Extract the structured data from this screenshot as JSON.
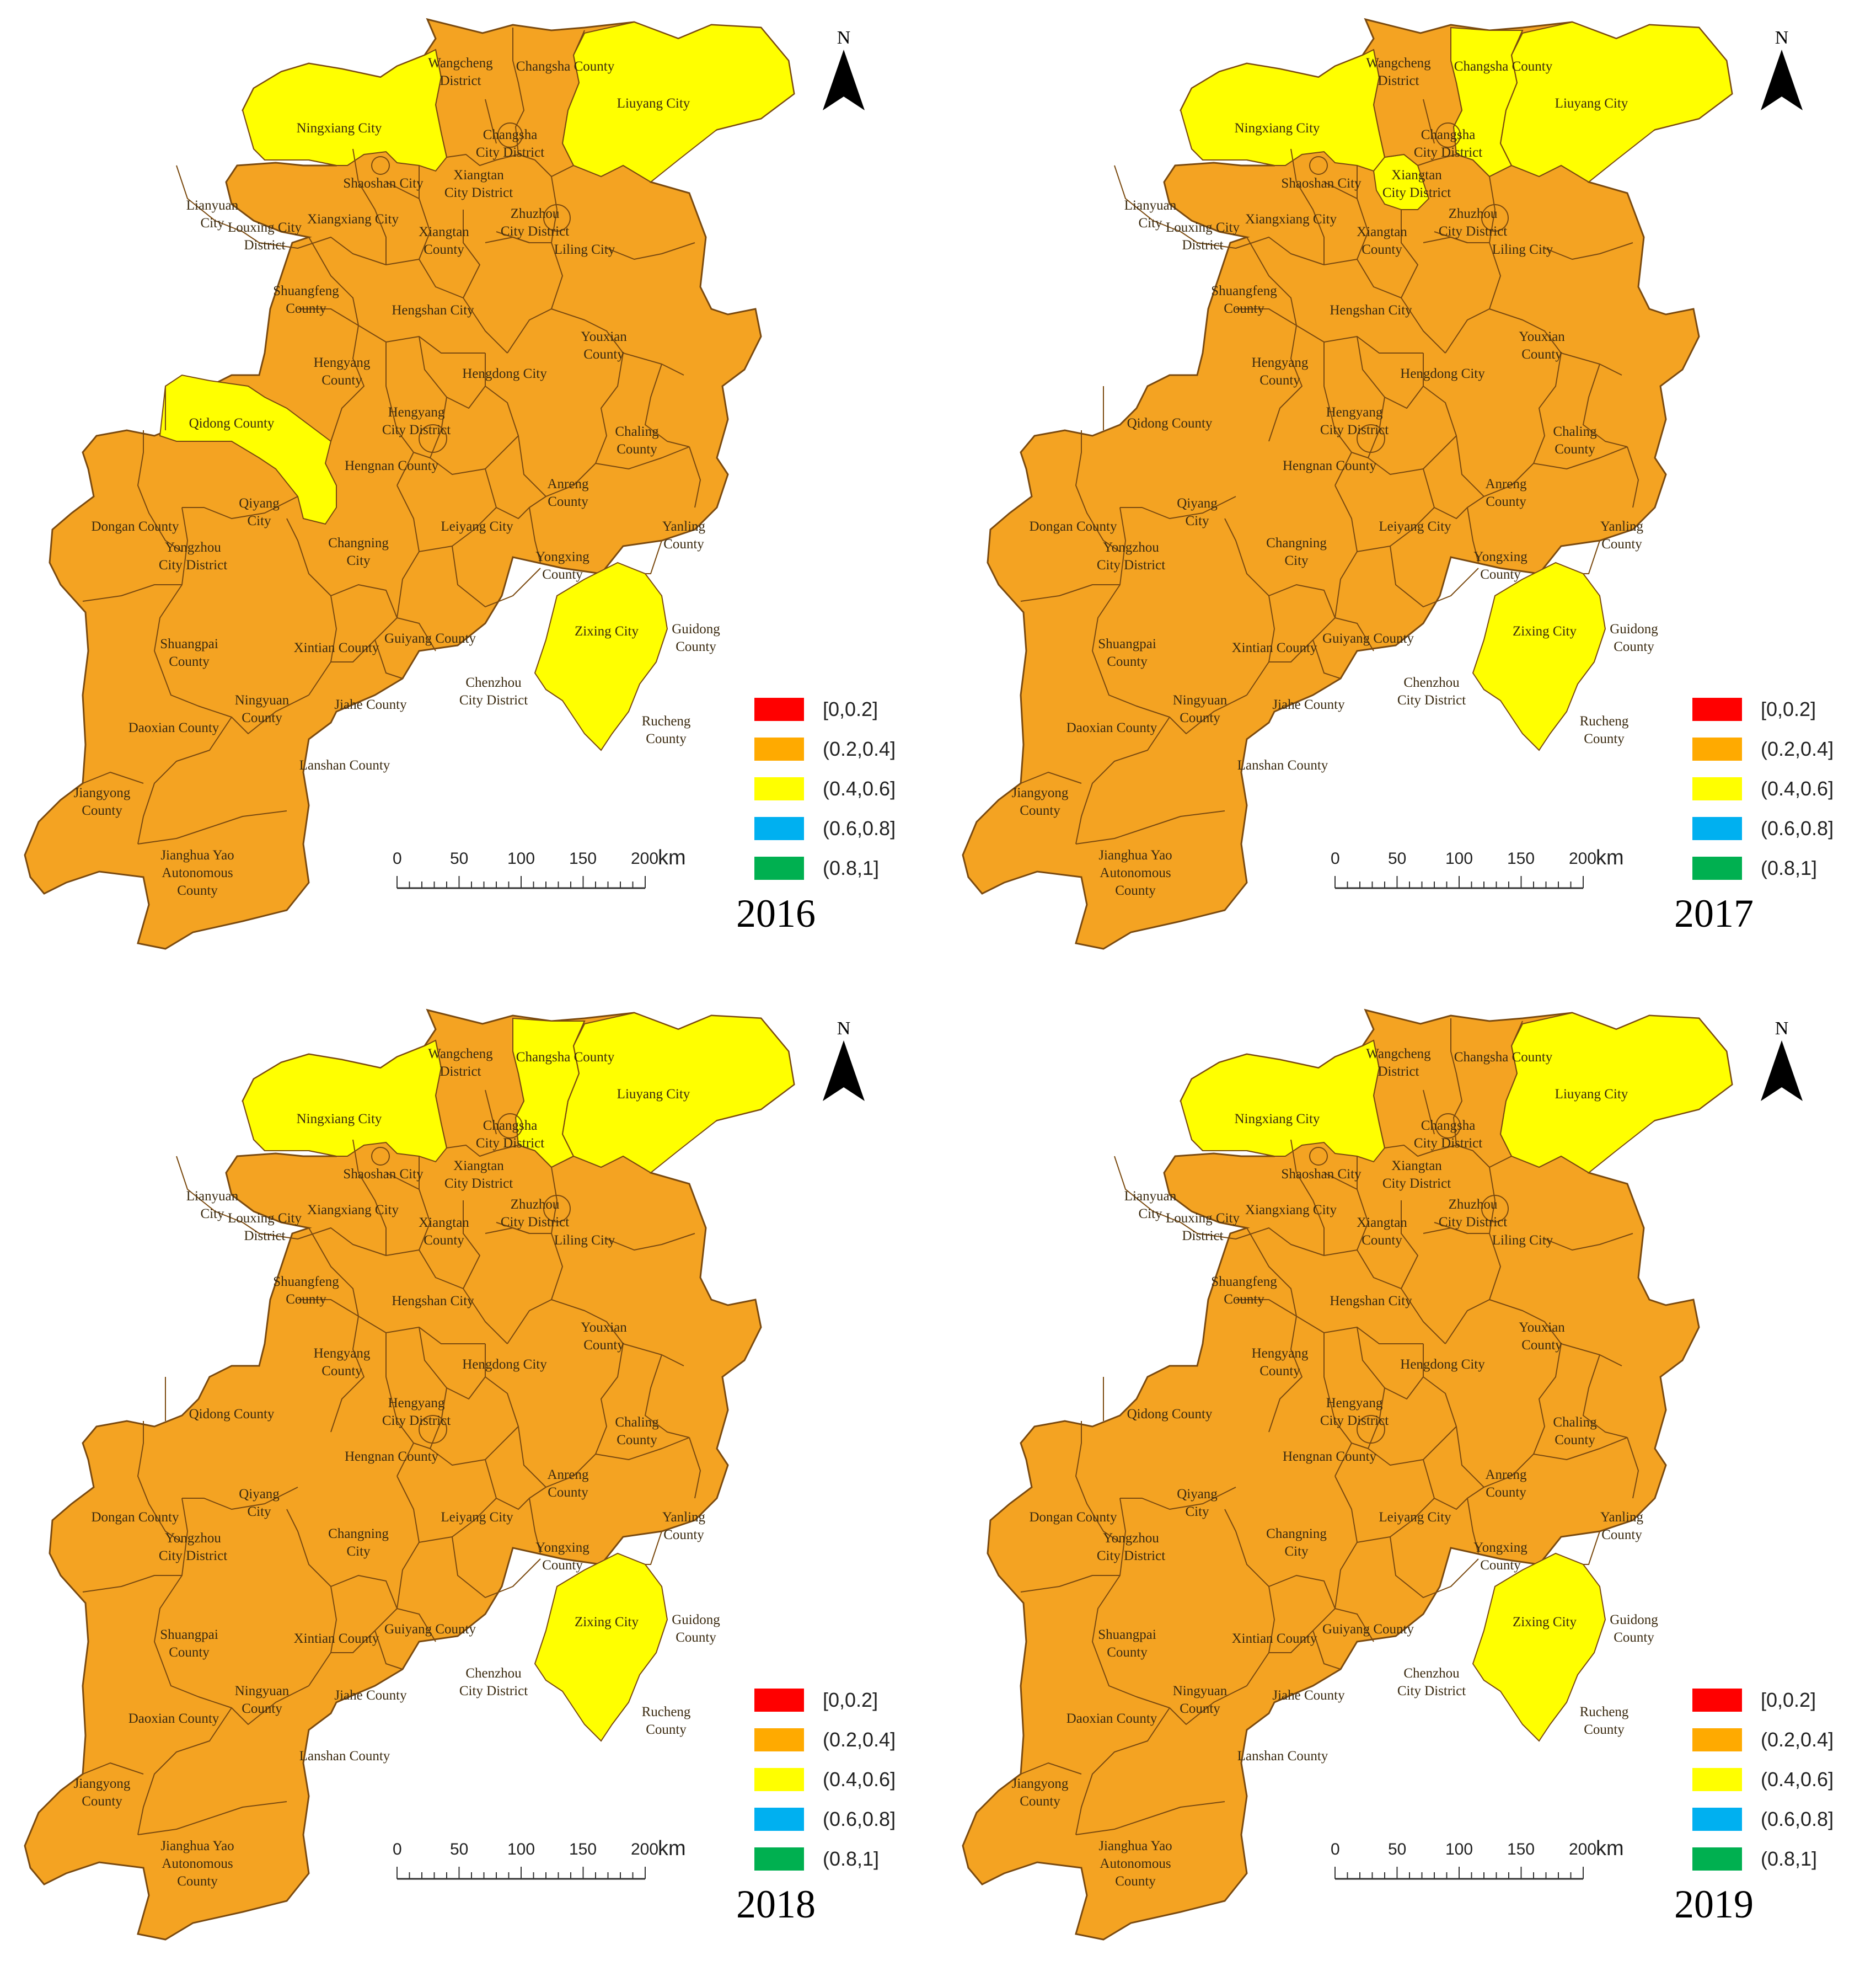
{
  "colors": {
    "orange": "#f4a322",
    "yellow": "#ffff00",
    "border": "#7a4a10"
  },
  "north_label": "N",
  "legend": [
    {
      "label": "[0,0.2]",
      "color": "#ff0000"
    },
    {
      "label": "(0.2,0.4]",
      "color": "#ffaa00"
    },
    {
      "label": "(0.4,0.6]",
      "color": "#ffff00"
    },
    {
      "label": "(0.6,0.8]",
      "color": "#00b0f0"
    },
    {
      "label": "(0.8,1]",
      "color": "#00b050"
    }
  ],
  "scale": {
    "ticks": [
      "0",
      "50",
      "100",
      "150",
      "200"
    ],
    "unit": "km"
  },
  "region_labels": [
    "Wangcheng District",
    "Changsha County",
    "Liuyang City",
    "Ningxiang City",
    "Changsha City District",
    "Shaoshan City",
    "Xiangtan City District",
    "Lianyuan City",
    "Louxing City District",
    "Xiangxiang City",
    "Xiangtan County",
    "Zhuzhou City District",
    "Liling City",
    "Shuangfeng County",
    "Hengshan City",
    "Youxian County",
    "Hengyang County",
    "Hengdong City",
    "Qidong County",
    "Hengyang City District",
    "Chaling County",
    "Hengnan County",
    "Anreng County",
    "Dongan County",
    "Qiyang City",
    "Changning City",
    "Leiyang City",
    "Yanling County",
    "Yongzhou City District",
    "Yongxing County",
    "Zixing City",
    "Shuangpai County",
    "Xintian County",
    "Guiyang County",
    "Guidong County",
    "Ningyuan County",
    "Jiahe County",
    "Chenzhou City District",
    "Daoxian County",
    "Rucheng County",
    "Lanshan County",
    "Jiangyong County",
    "Jianghua Yao Autonomous County"
  ],
  "maps": [
    {
      "year": "2016",
      "yellow_regions": [
        "Ningxiang City",
        "Liuyang City",
        "Qidong County",
        "Zixing City"
      ]
    },
    {
      "year": "2017",
      "yellow_regions": [
        "Ningxiang City",
        "Changsha County",
        "Liuyang City",
        "Xiangtan City District",
        "Zixing City"
      ]
    },
    {
      "year": "2018",
      "yellow_regions": [
        "Ningxiang City",
        "Changsha County",
        "Liuyang City",
        "Zixing City"
      ]
    },
    {
      "year": "2019",
      "yellow_regions": [
        "Ningxiang City",
        "Liuyang City",
        "Zixing City"
      ]
    }
  ]
}
